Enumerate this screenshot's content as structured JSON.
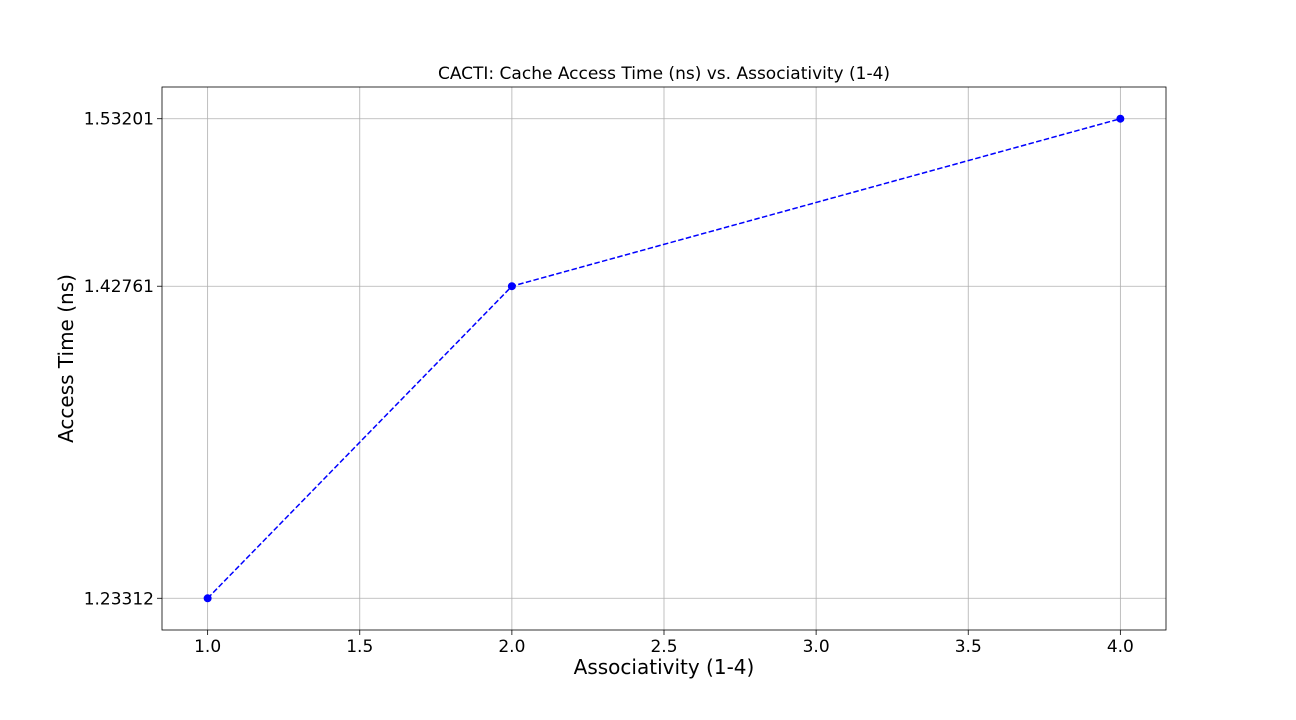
{
  "chart_data": {
    "type": "line",
    "title": "CACTI: Cache Access Time (ns) vs. Associativity (1-4)",
    "xlabel": "Associativity (1-4)",
    "ylabel": "Access Time (ns)",
    "x": [
      1,
      2,
      4
    ],
    "series": [
      {
        "values": [
          1.23312,
          1.42761,
          1.53201
        ],
        "color": "#0000ff",
        "line_style": "dashed",
        "marker": "circle"
      }
    ],
    "xlim": [
      0.85,
      4.15
    ],
    "ylim": [
      1.21335,
      1.55178
    ],
    "x_ticks": [
      1.0,
      1.5,
      2.0,
      2.5,
      3.0,
      3.5,
      4.0
    ],
    "x_tick_labels": [
      "1.0",
      "1.5",
      "2.0",
      "2.5",
      "3.0",
      "3.5",
      "4.0"
    ],
    "y_ticks": [
      1.23312,
      1.42761,
      1.53201
    ],
    "y_tick_labels": [
      "1.23312",
      "1.42761",
      "1.53201"
    ],
    "grid": true,
    "legend": "none"
  }
}
